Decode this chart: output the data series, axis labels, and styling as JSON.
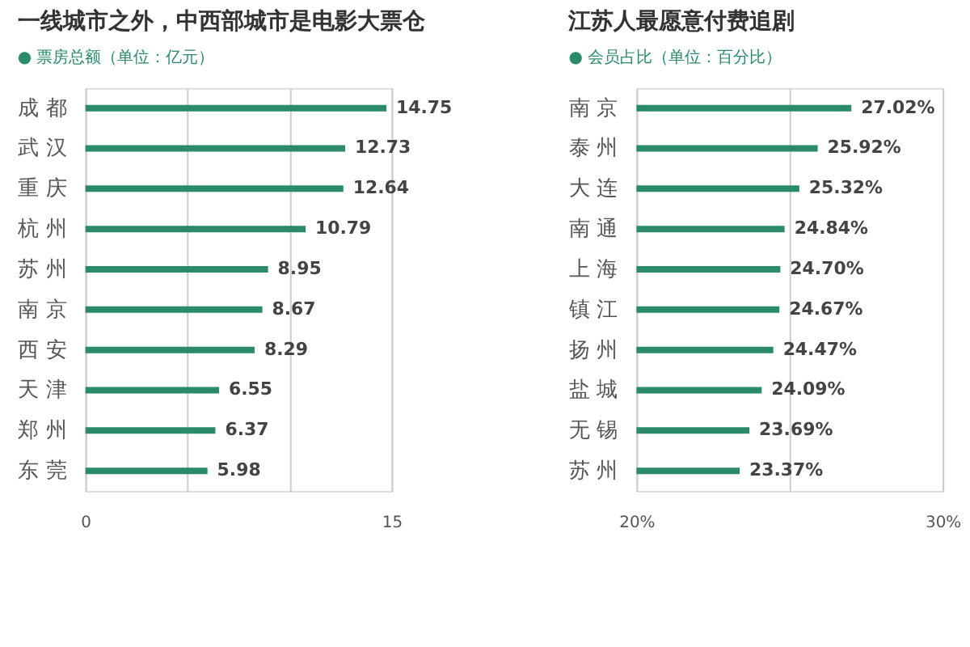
{
  "chart_data": [
    {
      "type": "bar",
      "orientation": "horizontal",
      "title": "一线城市之外，中西部城市是电影大票仓",
      "subtitle": "● 票房总额（单位：亿元）",
      "categories": [
        "成 都",
        "武 汉",
        "重 庆",
        "杭 州",
        "苏 州",
        "南 京",
        "西 安",
        "天 津",
        "郑 州",
        "东 莞"
      ],
      "values": [
        14.75,
        12.73,
        12.64,
        10.79,
        8.95,
        8.67,
        8.29,
        6.55,
        6.37,
        5.98
      ],
      "color": "#2a8a6a",
      "xlim": [
        0,
        15
      ],
      "xticks": [
        0,
        {
          "value": 5,
          "label": null
        },
        {
          "value": 10,
          "label": null
        },
        15
      ],
      "grid": "x",
      "data_labels": true
    },
    {
      "type": "bar",
      "orientation": "horizontal",
      "title": "江苏人最愿意付费追剧",
      "subtitle": "● 会员占比（单位：百分比）",
      "categories": [
        "南 京",
        "泰 州",
        "大 连",
        "南 通",
        "上 海",
        "镇 江",
        "扬 州",
        "盐 城",
        "无 锡",
        "苏 州"
      ],
      "values": [
        27.02,
        25.92,
        25.32,
        24.84,
        24.7,
        24.67,
        24.47,
        24.09,
        23.69,
        23.37
      ],
      "value_labels": [
        "27.02%",
        "25.92%",
        "25.32%",
        "24.84%",
        "24.70%",
        "24.67%",
        "24.47%",
        "24.09%",
        "23.69%",
        "23.37%"
      ],
      "color": "#2a8a6a",
      "xlim": [
        20,
        30
      ],
      "xticks": [
        {
          "value": 20,
          "label": "20%"
        },
        {
          "value": 25,
          "label": null
        },
        {
          "value": 30,
          "label": "30%"
        }
      ],
      "grid": "x"
    }
  ]
}
